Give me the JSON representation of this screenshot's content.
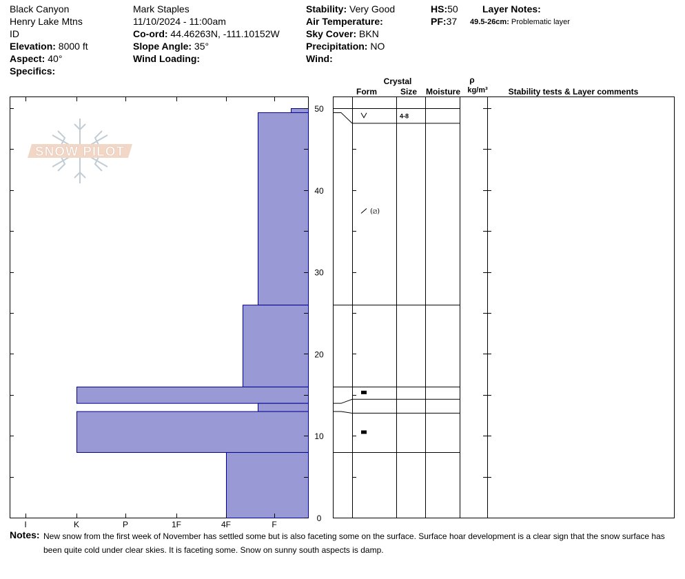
{
  "header": {
    "location": "Black Canyon",
    "range": "Henry Lake Mtns",
    "state": "ID",
    "elevation_label": "Elevation:",
    "elevation_value": " 8000 ft",
    "aspect_label": "Aspect:",
    "aspect_value": " 40°",
    "specifics_label": "Specifics:",
    "observer": "Mark Staples",
    "datetime": "11/10/2024 - 11:00am",
    "coord_label": "Co-ord:",
    "coord_value": " 44.46263N, -111.10152W",
    "slope_label": "Slope Angle:",
    "slope_value": " 35°",
    "wind_loading_label": "Wind Loading:",
    "stability_label": "Stability:",
    "stability_value": " Very Good",
    "air_temp_label": "Air Temperature:",
    "sky_label": "Sky Cover:",
    "sky_value": " BKN",
    "precip_label": "Precipitation:",
    "precip_value": " NO",
    "wind_label": "Wind:",
    "hs_label": "HS:",
    "hs_value": "50",
    "pf_label": "PF:",
    "pf_value": "37",
    "layer_notes_label": "Layer Notes:",
    "layer_note_range": "49.5-26cm:",
    "layer_note_text": " Problematic layer"
  },
  "columns": {
    "crystal": "Crystal",
    "form": "Form",
    "size": "Size",
    "moisture": "Moisture",
    "rho": "ρ",
    "density_unit": "kg/m³",
    "stability": "Stability tests & Layer comments"
  },
  "watermark": "SNOW PILOT",
  "notes": {
    "label": "Notes:",
    "text": "New snow from the first week of November has settled some but is also faceting some on the surface. Surface hoar development is a clear sign that the snow surface has been quite cold under clear skies. It is faceting some. Snow on sunny south aspects is damp."
  },
  "chart_data": {
    "type": "bar",
    "orientation": "horizontal",
    "y_label_unit": "cm",
    "ylim": [
      0,
      50
    ],
    "y_ticks": [
      0,
      10,
      20,
      30,
      40,
      50
    ],
    "hardness_scale": [
      "I",
      "K",
      "P",
      "1F",
      "4F",
      "F"
    ],
    "hardness_axis_note": "scale increases leftward (F at right, I at left)",
    "fill_color": "#9999d6",
    "edge_color": "#00008b",
    "layers": [
      {
        "bottom": 49.5,
        "top": 50,
        "hardness": "F-"
      },
      {
        "bottom": 26,
        "top": 49.5,
        "hardness": "F+"
      },
      {
        "bottom": 16,
        "top": 26,
        "hardness": "4F-"
      },
      {
        "bottom": 14,
        "top": 16,
        "hardness": "K"
      },
      {
        "bottom": 13,
        "top": 14,
        "hardness": "F+"
      },
      {
        "bottom": 8,
        "top": 13,
        "hardness": "K"
      },
      {
        "bottom": 0,
        "top": 8,
        "hardness": "4F"
      }
    ],
    "crystal_rows": [
      {
        "bottom": 48.2,
        "top": 50,
        "form": "surface-hoar",
        "size": "4-8"
      },
      {
        "bottom": 26,
        "top": 48.2,
        "form": "rounding-facets",
        "size": ""
      },
      {
        "bottom": 16,
        "top": 26,
        "form": "",
        "size": ""
      },
      {
        "bottom": 14.5,
        "top": 16,
        "form": "melt-form",
        "size": ""
      },
      {
        "bottom": 12.8,
        "top": 14.5,
        "form": "",
        "size": ""
      },
      {
        "bottom": 8,
        "top": 12.8,
        "form": "melt-form",
        "size": ""
      },
      {
        "bottom": 0,
        "top": 8,
        "form": "",
        "size": ""
      }
    ]
  }
}
